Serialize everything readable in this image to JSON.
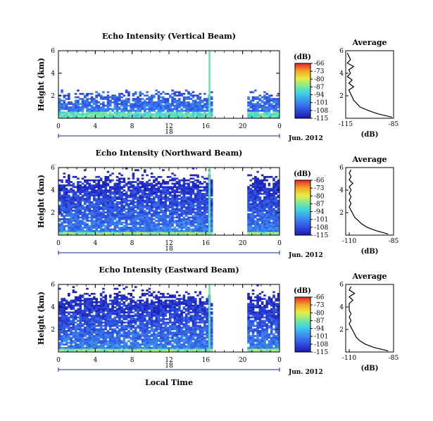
{
  "date_label": "Jun. 2012",
  "x_axis_label": "Local Time",
  "colorbar_unit": "(dB)",
  "colorbar_ticks": [
    "-66",
    "-73",
    "-80",
    "-87",
    "-94",
    "-101",
    "-108",
    "-115"
  ],
  "avg_xlabel": "(dB)",
  "chart_data": [
    {
      "type": "heatmap",
      "title": "Echo Intensity (Vertical Beam)",
      "ylabel": "Height (km)",
      "x_ticks": [
        "0",
        "4",
        "8",
        "12",
        "16",
        "20",
        "0"
      ],
      "y_ticks": [
        "2",
        "4",
        "6"
      ],
      "xlim": [
        0,
        24
      ],
      "ylim": [
        0,
        6
      ],
      "day_label": "18",
      "data_gap_hours": [
        16.3,
        20.4
      ],
      "colorbar": {
        "min": -115,
        "max": -66,
        "ticks": [
          -66,
          -73,
          -80,
          -87,
          -94,
          -101,
          -108,
          -115
        ]
      },
      "average_profile": {
        "title": "Average",
        "x_ticks": [
          "-115",
          "-85"
        ],
        "xlim": [
          -115,
          -85
        ],
        "y_ticks": [
          "2",
          "4",
          "6"
        ],
        "ylim": [
          0,
          6
        ],
        "height_km": [
          0.1,
          0.4,
          0.7,
          1.0,
          1.3,
          1.6,
          1.9,
          2.2,
          2.5,
          2.8,
          3.1,
          3.4,
          3.7,
          4.0,
          4.3,
          4.6,
          4.9,
          5.2,
          5.5,
          5.8
        ],
        "db": [
          -86,
          -95,
          -101,
          -106,
          -108,
          -110,
          -111,
          -112,
          -113,
          -110,
          -113,
          -111,
          -114,
          -112,
          -113,
          -110,
          -114,
          -112,
          -113,
          -114
        ]
      }
    },
    {
      "type": "heatmap",
      "title": "Echo Intensity (Northward Beam)",
      "ylabel": "Height (km)",
      "x_ticks": [
        "0",
        "4",
        "8",
        "12",
        "16",
        "20",
        "0"
      ],
      "y_ticks": [
        "2",
        "4",
        "6"
      ],
      "xlim": [
        0,
        24
      ],
      "ylim": [
        0,
        6
      ],
      "day_label": "18",
      "data_gap_hours": [
        16.3,
        20.4
      ],
      "colorbar": {
        "min": -115,
        "max": -66,
        "ticks": [
          -66,
          -73,
          -80,
          -87,
          -94,
          -101,
          -108,
          -115
        ]
      },
      "average_profile": {
        "title": "Average",
        "x_ticks": [
          "-110",
          "-85"
        ],
        "xlim": [
          -112,
          -85
        ],
        "y_ticks": [
          "2",
          "4",
          "6"
        ],
        "ylim": [
          0,
          6
        ],
        "height_km": [
          0.1,
          0.4,
          0.7,
          1.0,
          1.3,
          1.6,
          1.9,
          2.2,
          2.5,
          2.8,
          3.1,
          3.4,
          3.7,
          4.0,
          4.3,
          4.6,
          4.9,
          5.2,
          5.5,
          5.8
        ],
        "db": [
          -88,
          -95,
          -100,
          -103,
          -105,
          -107,
          -108,
          -109,
          -110,
          -109,
          -110,
          -109,
          -110,
          -109,
          -110,
          -108,
          -110,
          -109,
          -110,
          -109
        ]
      }
    },
    {
      "type": "heatmap",
      "title": "Echo Intensity (Eastward Beam)",
      "ylabel": "Height (km)",
      "x_ticks": [
        "0",
        "4",
        "8",
        "12",
        "16",
        "20",
        "0"
      ],
      "y_ticks": [
        "2",
        "4",
        "6"
      ],
      "xlim": [
        0,
        24
      ],
      "ylim": [
        0,
        6
      ],
      "day_label": "18",
      "data_gap_hours": [
        16.3,
        20.4
      ],
      "colorbar": {
        "min": -115,
        "max": -66,
        "ticks": [
          -66,
          -73,
          -80,
          -87,
          -94,
          -101,
          -108,
          -115
        ]
      },
      "average_profile": {
        "title": "Average",
        "x_ticks": [
          "-110",
          "-85"
        ],
        "xlim": [
          -112,
          -85
        ],
        "y_ticks": [
          "2",
          "4",
          "6"
        ],
        "ylim": [
          0,
          6
        ],
        "height_km": [
          0.1,
          0.4,
          0.7,
          1.0,
          1.3,
          1.6,
          1.9,
          2.2,
          2.5,
          2.8,
          3.1,
          3.4,
          3.7,
          4.0,
          4.3,
          4.6,
          4.9,
          5.2,
          5.5,
          5.8
        ],
        "db": [
          -88,
          -96,
          -101,
          -104,
          -106,
          -107,
          -108,
          -109,
          -110,
          -109,
          -110,
          -109,
          -110,
          -110,
          -110,
          -108,
          -110,
          -107,
          -110,
          -109
        ]
      }
    }
  ]
}
